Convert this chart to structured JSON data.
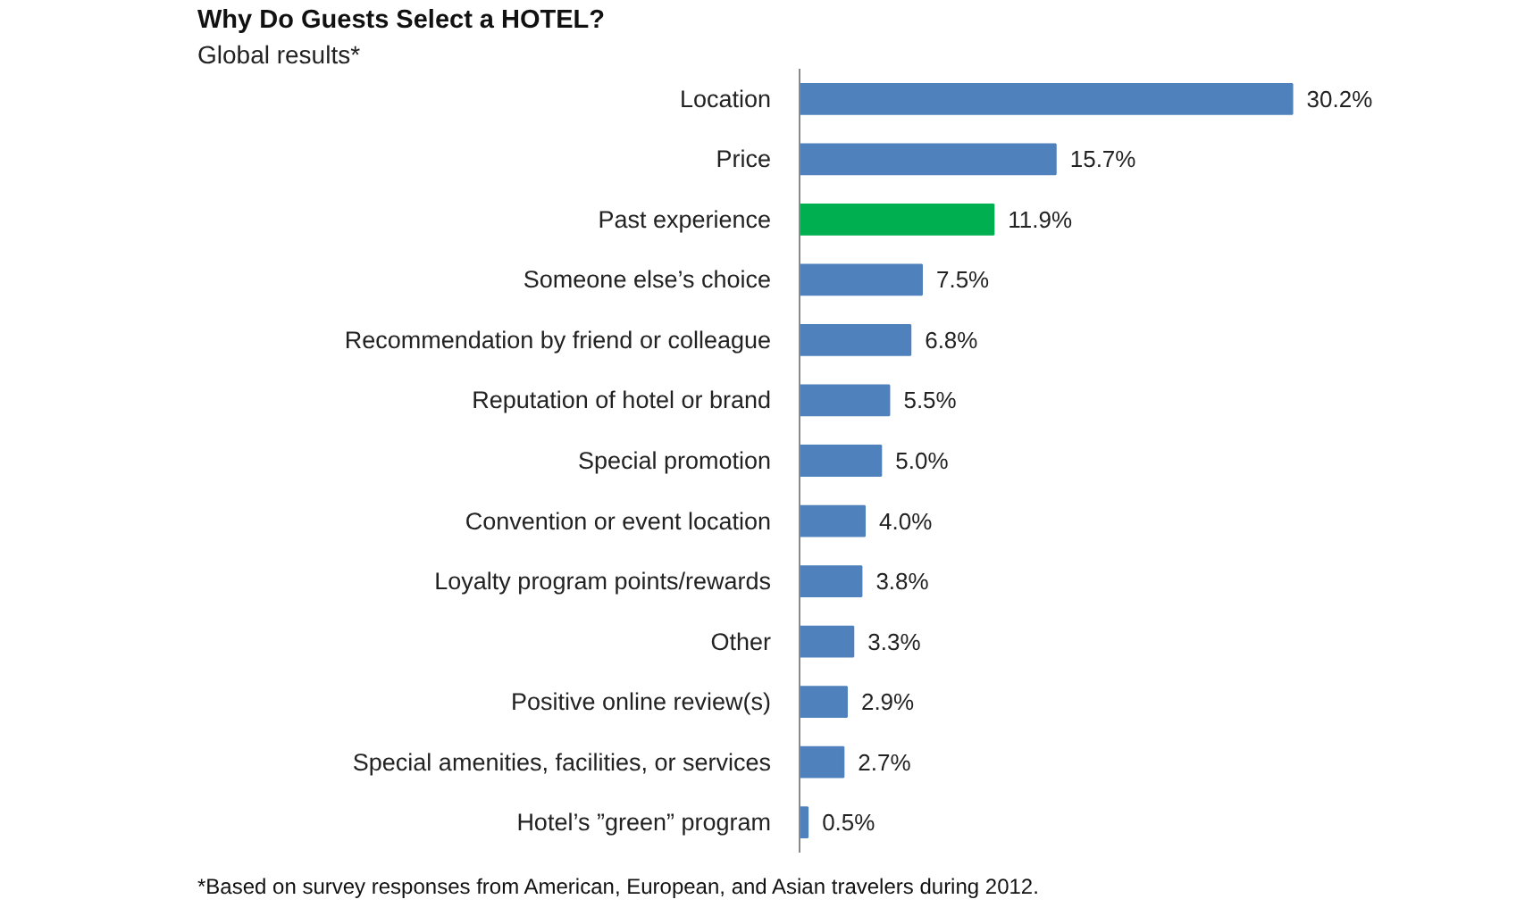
{
  "chart_data": {
    "type": "bar",
    "orientation": "horizontal",
    "title": "Why Do Guests Select a HOTEL?",
    "subtitle": "Global results*",
    "categories": [
      "Location",
      "Price",
      "Past experience",
      "Someone else’s choice",
      "Recommendation by friend or colleague",
      "Reputation of hotel or brand",
      "Special promotion",
      "Convention or event location",
      "Loyalty program points/rewards",
      "Other",
      "Positive online review(s)",
      "Special amenities, facilities, or services",
      "Hotel’s ”green” program"
    ],
    "values": [
      30.2,
      15.7,
      11.9,
      7.5,
      6.8,
      5.5,
      5.0,
      4.0,
      3.8,
      3.3,
      2.9,
      2.7,
      0.5
    ],
    "value_labels": [
      "30.2%",
      "15.7%",
      "11.9%",
      "7.5%",
      "6.8%",
      "5.5%",
      "5.0%",
      "4.0%",
      "3.8%",
      "3.3%",
      "2.9%",
      "2.7%",
      "0.5%"
    ],
    "colors": [
      "#4f81bd",
      "#4f81bd",
      "#00b050",
      "#4f81bd",
      "#4f81bd",
      "#4f81bd",
      "#4f81bd",
      "#4f81bd",
      "#4f81bd",
      "#4f81bd",
      "#4f81bd",
      "#4f81bd",
      "#4f81bd"
    ],
    "annotations": [
      "*Based on survey responses from American, European, and Asian travelers during 2012."
    ]
  }
}
